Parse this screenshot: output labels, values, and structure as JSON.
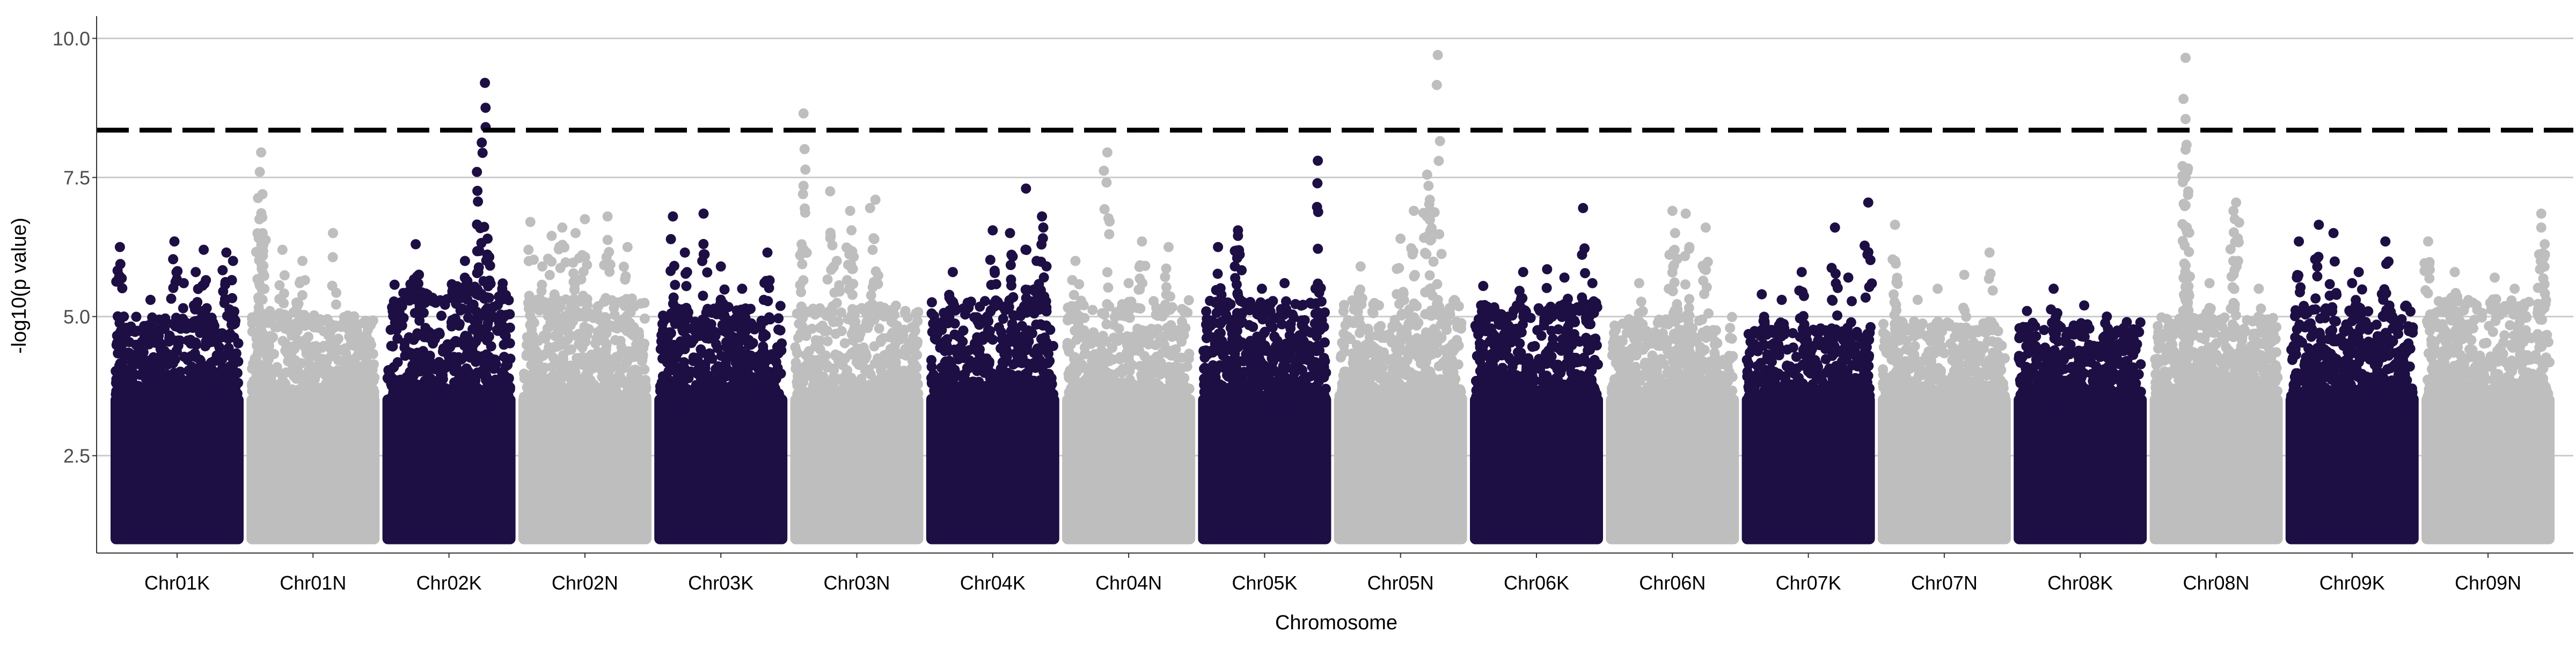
{
  "chart_data": {
    "type": "scatter",
    "subtype": "manhattan",
    "title": "",
    "xlabel": "Chromosome",
    "ylabel": "-log10(p value)",
    "ylim": [
      0.75,
      10.4
    ],
    "yticks": [
      2.5,
      5.0,
      7.5,
      10.0
    ],
    "ytick_labels": [
      "2.5",
      "5.0",
      "7.5",
      "10.0"
    ],
    "grid": "horizontal major lines only",
    "legend": "none",
    "threshold": {
      "value": 8.35,
      "style": "dashed",
      "color": "#000000"
    },
    "colors": {
      "dark": "#1d0f44",
      "light": "#bebebe",
      "grid": "#cccccc",
      "axis": "#333333"
    },
    "categories": [
      "Chr01K",
      "Chr01N",
      "Chr02K",
      "Chr02N",
      "Chr03K",
      "Chr03N",
      "Chr04K",
      "Chr04N",
      "Chr05K",
      "Chr05N",
      "Chr06K",
      "Chr06N",
      "Chr07K",
      "Chr07N",
      "Chr08K",
      "Chr08N",
      "Chr09K",
      "Chr09N"
    ],
    "series": [
      {
        "chromosome": "Chr01K",
        "color": "dark",
        "baseline_max": 3.6,
        "background_max": 5.0,
        "peaks": [
          [
            0.07,
            6.25
          ],
          [
            0.3,
            5.3
          ],
          [
            0.48,
            6.35
          ],
          [
            0.64,
            5.8
          ],
          [
            0.7,
            6.2
          ],
          [
            0.87,
            6.15
          ],
          [
            0.92,
            6.0
          ],
          [
            0.1,
            5.0
          ],
          [
            0.55,
            5.6
          ]
        ]
      },
      {
        "chromosome": "Chr01N",
        "color": "light",
        "baseline_max": 3.6,
        "background_max": 5.1,
        "peaks": [
          [
            0.11,
            7.95
          ],
          [
            0.1,
            7.6
          ],
          [
            0.12,
            7.2
          ],
          [
            0.11,
            6.8
          ],
          [
            0.27,
            6.2
          ],
          [
            0.42,
            6.0
          ],
          [
            0.65,
            6.5
          ],
          [
            0.4,
            5.6
          ]
        ]
      },
      {
        "chromosome": "Chr02K",
        "color": "dark",
        "baseline_max": 3.6,
        "background_max": 5.6,
        "peaks": [
          [
            0.77,
            9.2
          ],
          [
            0.71,
            7.6
          ],
          [
            0.79,
            6.4
          ],
          [
            0.25,
            6.3
          ],
          [
            0.62,
            6.0
          ],
          [
            0.72,
            5.8
          ],
          [
            0.9,
            5.5
          ]
        ]
      },
      {
        "chromosome": "Chr02N",
        "color": "light",
        "baseline_max": 3.6,
        "background_max": 5.4,
        "peaks": [
          [
            0.09,
            6.7
          ],
          [
            0.25,
            6.45
          ],
          [
            0.33,
            6.6
          ],
          [
            0.43,
            6.5
          ],
          [
            0.5,
            6.75
          ],
          [
            0.67,
            6.8
          ],
          [
            0.82,
            6.25
          ],
          [
            0.18,
            5.9
          ]
        ]
      },
      {
        "chromosome": "Chr03K",
        "color": "dark",
        "baseline_max": 3.6,
        "background_max": 5.2,
        "peaks": [
          [
            0.14,
            6.8
          ],
          [
            0.23,
            6.15
          ],
          [
            0.37,
            6.85
          ],
          [
            0.85,
            6.15
          ],
          [
            0.5,
            5.9
          ],
          [
            0.66,
            5.5
          ]
        ]
      },
      {
        "chromosome": "Chr03N",
        "color": "light",
        "baseline_max": 3.6,
        "background_max": 5.2,
        "peaks": [
          [
            0.1,
            8.65
          ],
          [
            0.1,
            7.35
          ],
          [
            0.3,
            7.25
          ],
          [
            0.45,
            6.9
          ],
          [
            0.46,
            6.55
          ],
          [
            0.6,
            6.95
          ],
          [
            0.64,
            7.1
          ],
          [
            0.35,
            6.0
          ]
        ]
      },
      {
        "chromosome": "Chr04K",
        "color": "dark",
        "baseline_max": 3.6,
        "background_max": 5.3,
        "peaks": [
          [
            0.5,
            6.55
          ],
          [
            0.63,
            6.5
          ],
          [
            0.75,
            7.3
          ],
          [
            0.87,
            6.8
          ],
          [
            0.88,
            6.6
          ],
          [
            0.2,
            5.8
          ],
          [
            0.83,
            6.0
          ]
        ]
      },
      {
        "chromosome": "Chr04N",
        "color": "light",
        "baseline_max": 3.6,
        "background_max": 5.3,
        "peaks": [
          [
            0.34,
            7.95
          ],
          [
            0.6,
            6.35
          ],
          [
            0.1,
            6.0
          ],
          [
            0.8,
            6.25
          ],
          [
            0.5,
            5.6
          ]
        ]
      },
      {
        "chromosome": "Chr05K",
        "color": "dark",
        "baseline_max": 3.6,
        "background_max": 5.3,
        "peaks": [
          [
            0.15,
            6.25
          ],
          [
            0.3,
            6.55
          ],
          [
            0.3,
            6.45
          ],
          [
            0.9,
            7.8
          ],
          [
            0.65,
            5.6
          ],
          [
            0.48,
            5.5
          ]
        ]
      },
      {
        "chromosome": "Chr05N",
        "color": "light",
        "baseline_max": 3.6,
        "background_max": 5.3,
        "peaks": [
          [
            0.78,
            9.7
          ],
          [
            0.7,
            7.55
          ],
          [
            0.71,
            7.35
          ],
          [
            0.72,
            7.1
          ],
          [
            0.6,
            6.9
          ],
          [
            0.2,
            5.9
          ],
          [
            0.5,
            6.4
          ]
        ]
      },
      {
        "chromosome": "Chr06K",
        "color": "dark",
        "baseline_max": 3.6,
        "background_max": 5.2,
        "peaks": [
          [
            0.85,
            6.95
          ],
          [
            0.4,
            5.8
          ],
          [
            0.58,
            5.85
          ],
          [
            0.71,
            5.7
          ],
          [
            0.1,
            5.55
          ],
          [
            0.92,
            5.6
          ]
        ]
      },
      {
        "chromosome": "Chr06N",
        "color": "light",
        "baseline_max": 3.6,
        "background_max": 5.0,
        "peaks": [
          [
            0.5,
            6.9
          ],
          [
            0.6,
            6.85
          ],
          [
            0.75,
            6.6
          ],
          [
            0.52,
            6.5
          ],
          [
            0.25,
            5.6
          ]
        ]
      },
      {
        "chromosome": "Chr07K",
        "color": "dark",
        "baseline_max": 3.6,
        "background_max": 4.8,
        "peaks": [
          [
            0.95,
            7.05
          ],
          [
            0.7,
            6.6
          ],
          [
            0.45,
            5.8
          ],
          [
            0.8,
            5.7
          ],
          [
            0.3,
            5.3
          ],
          [
            0.15,
            5.4
          ]
        ]
      },
      {
        "chromosome": "Chr07N",
        "color": "light",
        "baseline_max": 3.6,
        "background_max": 4.9,
        "peaks": [
          [
            0.13,
            6.65
          ],
          [
            0.13,
            6.0
          ],
          [
            0.65,
            5.75
          ],
          [
            0.84,
            6.15
          ],
          [
            0.45,
            5.5
          ],
          [
            0.3,
            5.3
          ]
        ]
      },
      {
        "chromosome": "Chr08K",
        "color": "dark",
        "baseline_max": 3.6,
        "background_max": 4.9,
        "peaks": [
          [
            0.3,
            5.5
          ],
          [
            0.1,
            5.1
          ],
          [
            0.53,
            5.2
          ],
          [
            0.7,
            5.0
          ],
          [
            0.85,
            4.9
          ]
        ]
      },
      {
        "chromosome": "Chr08N",
        "color": "light",
        "baseline_max": 3.6,
        "background_max": 5.0,
        "peaks": [
          [
            0.27,
            9.65
          ],
          [
            0.27,
            8.55
          ],
          [
            0.27,
            8.0
          ],
          [
            0.27,
            7.5
          ],
          [
            0.27,
            7.0
          ],
          [
            0.28,
            6.6
          ],
          [
            0.65,
            7.05
          ],
          [
            0.63,
            6.9
          ],
          [
            0.64,
            6.75
          ],
          [
            0.45,
            5.6
          ],
          [
            0.82,
            5.5
          ]
        ]
      },
      {
        "chromosome": "Chr09K",
        "color": "dark",
        "baseline_max": 3.6,
        "background_max": 5.2,
        "peaks": [
          [
            0.1,
            6.35
          ],
          [
            0.25,
            6.65
          ],
          [
            0.36,
            6.5
          ],
          [
            0.55,
            5.8
          ],
          [
            0.75,
            6.35
          ],
          [
            0.5,
            5.6
          ]
        ]
      },
      {
        "chromosome": "Chr09N",
        "color": "light",
        "baseline_max": 3.6,
        "background_max": 5.3,
        "peaks": [
          [
            0.9,
            6.85
          ],
          [
            0.9,
            6.6
          ],
          [
            0.05,
            6.35
          ],
          [
            0.25,
            5.8
          ],
          [
            0.55,
            5.7
          ],
          [
            0.7,
            5.5
          ]
        ]
      }
    ]
  }
}
